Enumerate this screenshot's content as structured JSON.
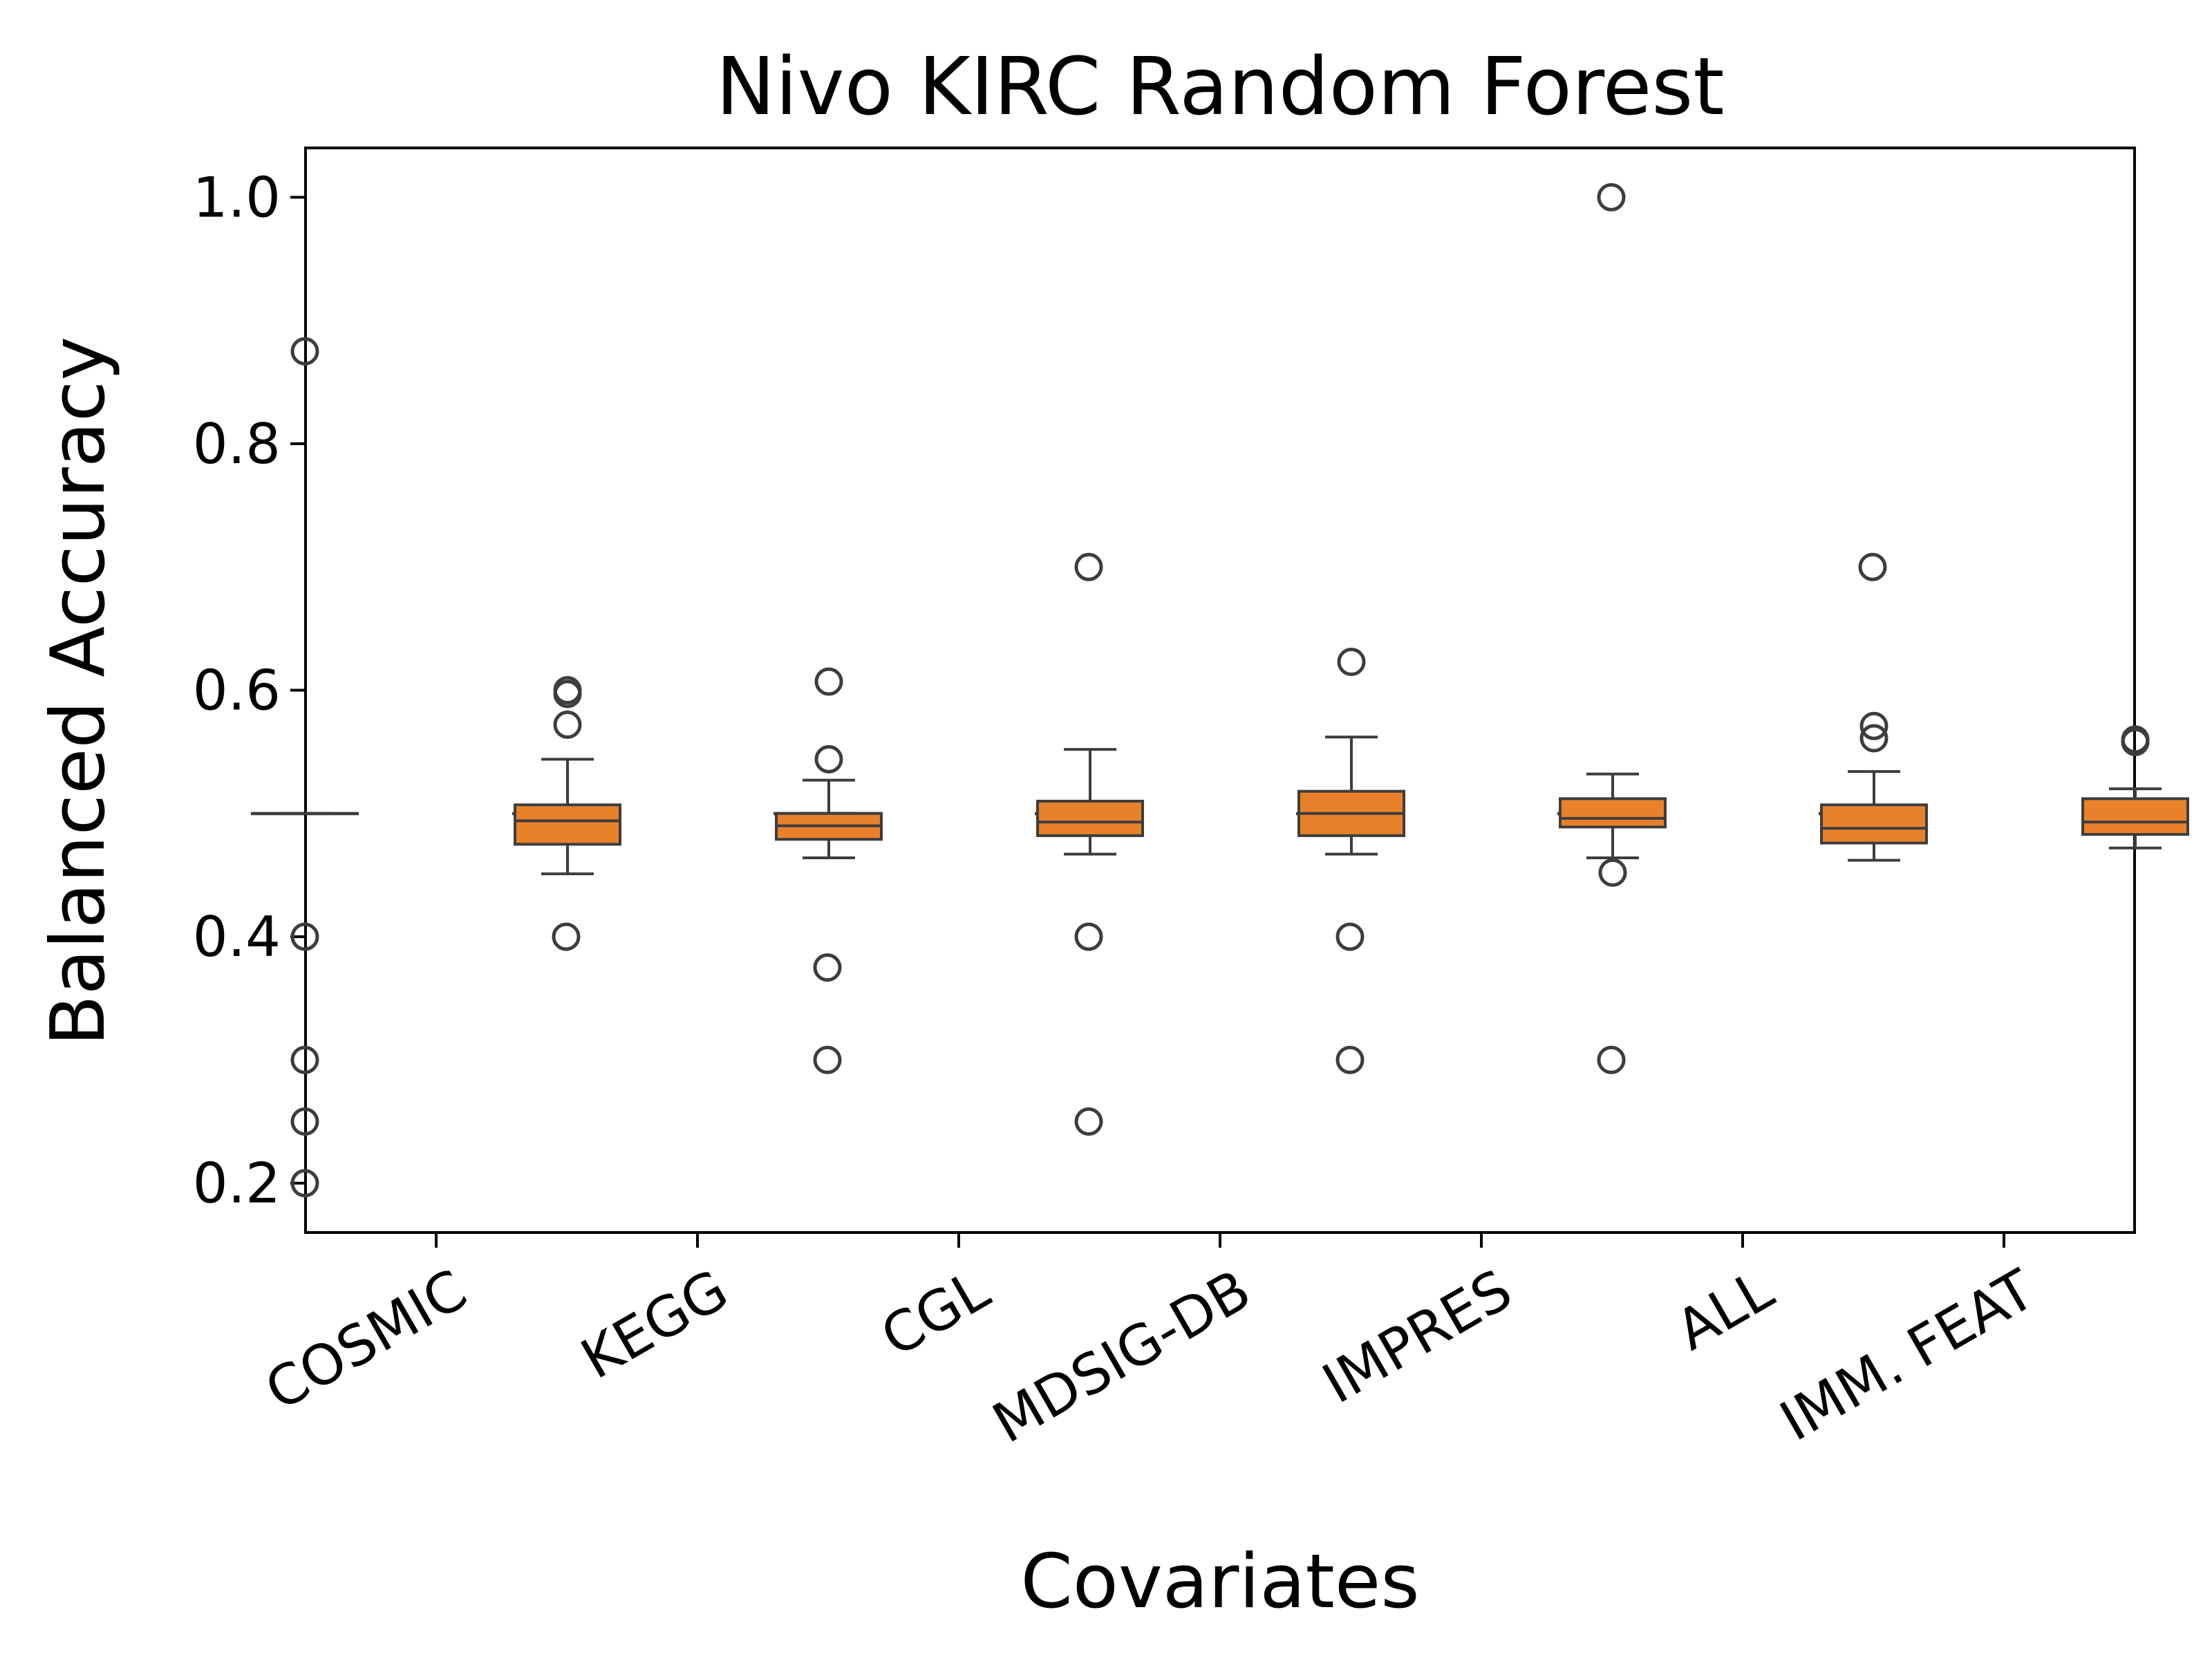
{
  "chart_data": {
    "type": "box",
    "title": "Nivo  KIRC  Random Forest",
    "xlabel": "Covariates",
    "ylabel": "Balanced Accuracy",
    "ylim": [
      0.16,
      1.04
    ],
    "yticks": [
      0.2,
      0.4,
      0.6,
      0.8,
      1.0
    ],
    "ytick_labels": [
      "0.2",
      "0.4",
      "0.6",
      "0.8",
      "1.0"
    ],
    "categories": [
      "COSMIC",
      "KEGG",
      "CGL",
      "MDSIG-DB",
      "IMPRES",
      "ALL",
      "IMM. FEAT"
    ],
    "grid": false,
    "colors": {
      "box_orange": "#e8812a",
      "box_edge": "#3d3d3d",
      "flier_edge": "#3d3d3d"
    },
    "series": [
      {
        "boxes": [
          {
            "category": "COSMIC",
            "q1": 0.5,
            "median": 0.5,
            "q3": 0.5,
            "whisker_low": 0.5,
            "whisker_high": 0.5,
            "outliers": [
              0.875,
              0.4,
              0.3,
              0.25,
              0.2
            ]
          },
          {
            "category": "KEGG",
            "q1": 0.5,
            "median": 0.5,
            "q3": 0.5,
            "whisker_low": 0.5,
            "whisker_high": 0.5,
            "outliers": [
              0.4
            ]
          },
          {
            "category": "CGL",
            "q1": 0.5,
            "median": 0.5,
            "q3": 0.5,
            "whisker_low": 0.5,
            "whisker_high": 0.5,
            "outliers": [
              0.375,
              0.3
            ]
          },
          {
            "category": "MDSIG-DB",
            "q1": 0.5,
            "median": 0.5,
            "q3": 0.5,
            "whisker_low": 0.5,
            "whisker_high": 0.5,
            "outliers": [
              0.7,
              0.4,
              0.25
            ]
          },
          {
            "category": "IMPRES",
            "q1": 0.5,
            "median": 0.5,
            "q3": 0.5,
            "whisker_low": 0.5,
            "whisker_high": 0.5,
            "outliers": [
              0.4,
              0.3
            ]
          },
          {
            "category": "ALL",
            "q1": 0.5,
            "median": 0.5,
            "q3": 0.5,
            "whisker_low": 0.5,
            "whisker_high": 0.5,
            "outliers": [
              1.0,
              0.3
            ]
          },
          {
            "category": "IMM. FEAT",
            "q1": 0.5,
            "median": 0.5,
            "q3": 0.5,
            "whisker_low": 0.5,
            "whisker_high": 0.5,
            "outliers": [
              0.7
            ]
          }
        ]
      },
      {
        "boxes": [
          {
            "category": "COSMIC",
            "q1": 0.475,
            "median": 0.494,
            "q3": 0.507,
            "whisker_low": 0.451,
            "whisker_high": 0.544,
            "outliers": [
              0.6,
              0.597,
              0.572
            ]
          },
          {
            "category": "KEGG",
            "q1": 0.479,
            "median": 0.49,
            "q3": 0.5,
            "whisker_low": 0.464,
            "whisker_high": 0.527,
            "outliers": [
              0.607,
              0.544
            ]
          },
          {
            "category": "CGL",
            "q1": 0.482,
            "median": 0.493,
            "q3": 0.51,
            "whisker_low": 0.467,
            "whisker_high": 0.552,
            "outliers": []
          },
          {
            "category": "MDSIG-DB",
            "q1": 0.482,
            "median": 0.5,
            "q3": 0.518,
            "whisker_low": 0.467,
            "whisker_high": 0.562,
            "outliers": [
              0.623
            ]
          },
          {
            "category": "IMPRES",
            "q1": 0.489,
            "median": 0.496,
            "q3": 0.512,
            "whisker_low": 0.464,
            "whisker_high": 0.532,
            "outliers": [
              0.452
            ]
          },
          {
            "category": "ALL",
            "q1": 0.476,
            "median": 0.488,
            "q3": 0.507,
            "whisker_low": 0.462,
            "whisker_high": 0.534,
            "outliers": [
              0.571,
              0.561
            ]
          },
          {
            "category": "IMM. FEAT",
            "q1": 0.483,
            "median": 0.493,
            "q3": 0.512,
            "whisker_low": 0.472,
            "whisker_high": 0.52,
            "outliers": [
              0.56,
              0.558
            ]
          }
        ]
      }
    ]
  }
}
